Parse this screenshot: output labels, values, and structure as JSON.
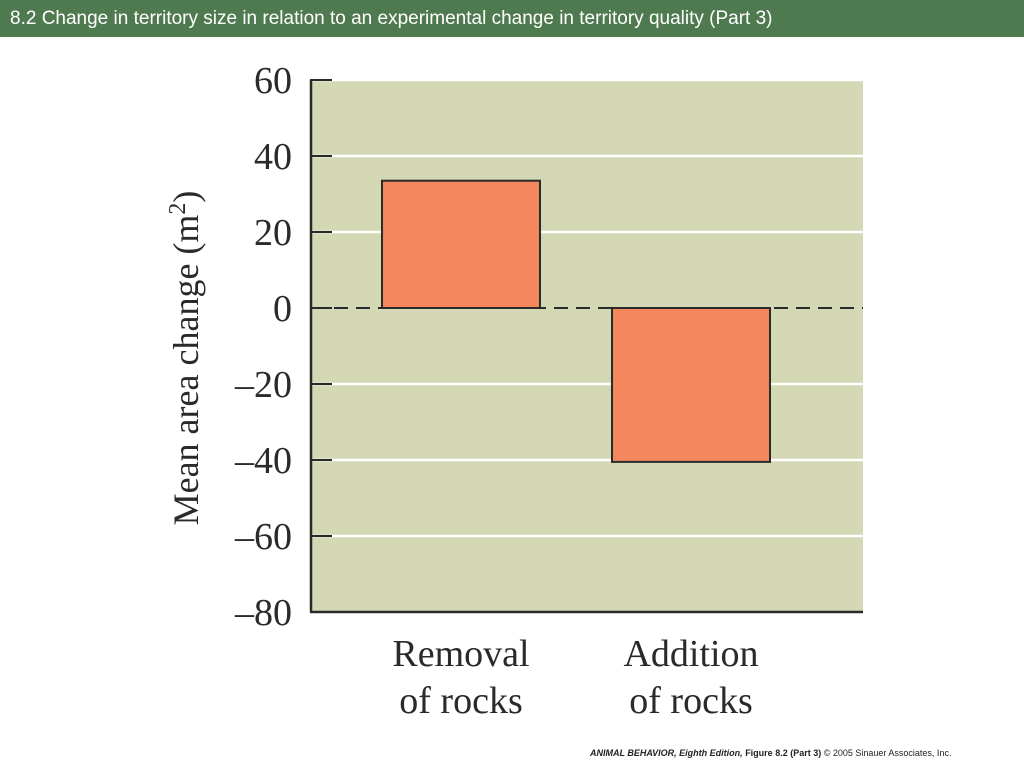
{
  "header": {
    "title": "8.2  Change in territory size in relation to an experimental change in territory quality (Part 3)"
  },
  "chart_data": {
    "type": "bar",
    "categories": [
      [
        "Removal",
        "of rocks"
      ],
      [
        "Addition",
        "of rocks"
      ]
    ],
    "values": [
      33.5,
      -40.5
    ],
    "ylabel": "Mean area change (m",
    "ylabel_superscript": "2",
    "ylabel_close": ")",
    "ylim": [
      -80,
      60
    ],
    "yticks": [
      60,
      40,
      20,
      0,
      -20,
      -40,
      -60,
      -80
    ],
    "ytick_labels": [
      "60",
      "40",
      "20",
      "0",
      "–20",
      "–40",
      "–60",
      "–80"
    ],
    "grid": true,
    "zero_line": "dashed",
    "colors": {
      "plot_background": "#d5d8b4",
      "bar_fill": "#f5875c",
      "bar_stroke": "#2a2a2a",
      "grid": "#ffffff"
    }
  },
  "footer": {
    "book": "ANIMAL BEHAVIOR, Eighth Edition,",
    "figure": "Figure 8.2 (Part 3)",
    "copyright": "© 2005 Sinauer Associates, Inc."
  }
}
